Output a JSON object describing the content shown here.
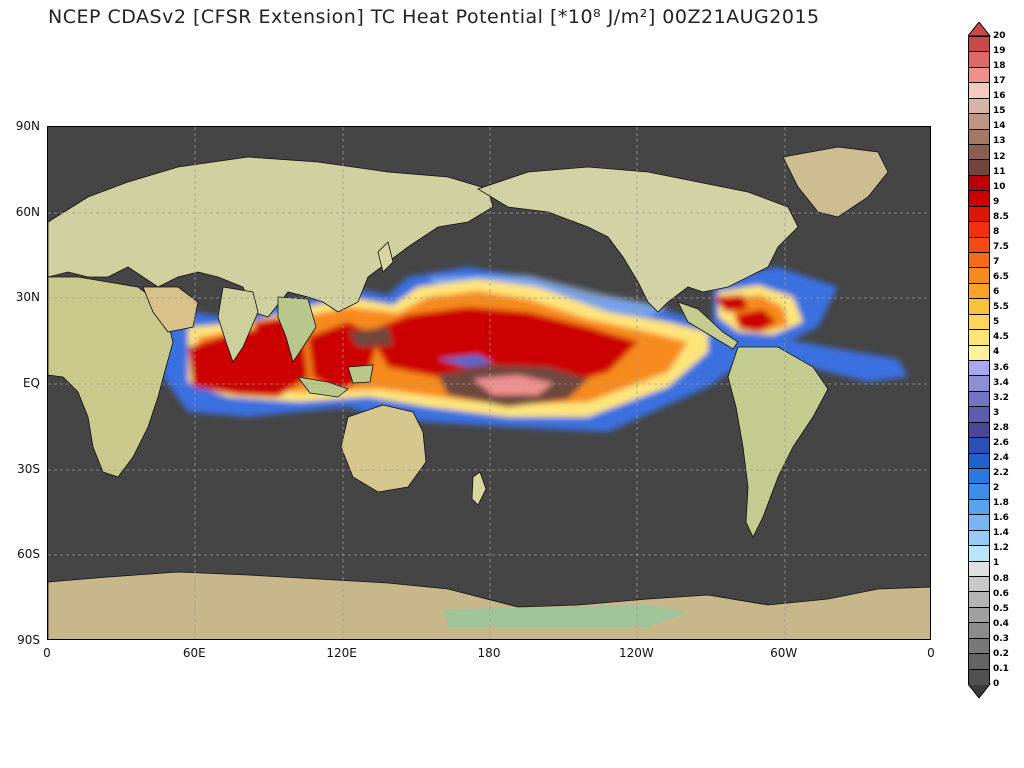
{
  "title": "NCEP CDASv2 [CFSR Extension] TC Heat Potential [*10⁸ J/m²] 00Z21AUG2015",
  "map": {
    "y_axis_labels": [
      "90N",
      "60N",
      "30N",
      "EQ",
      "30S",
      "60S",
      "90S"
    ],
    "x_axis_labels": [
      "0",
      "60E",
      "120E",
      "180",
      "120W",
      "60W",
      "0"
    ],
    "grid": true,
    "ocean_no_data_color": "#454545",
    "land_color": "#d9d4a0",
    "antarctica_color": "#c9b78c"
  },
  "colorbar": {
    "labels": [
      "20",
      "19",
      "18",
      "17",
      "16",
      "15",
      "14",
      "13",
      "12",
      "11",
      "10",
      "9",
      "8.5",
      "8",
      "7.5",
      "7",
      "6.5",
      "6",
      "5.5",
      "5",
      "4.5",
      "4",
      "3.6",
      "3.4",
      "3.2",
      "3",
      "2.8",
      "2.6",
      "2.4",
      "2.2",
      "2",
      "1.8",
      "1.6",
      "1.4",
      "1.2",
      "1",
      "0.8",
      "0.6",
      "0.5",
      "0.4",
      "0.3",
      "0.2",
      "0.1",
      "0"
    ],
    "colors": [
      "#c94848",
      "#dc6a6a",
      "#f0908e",
      "#f6c9c0",
      "#d6b4a6",
      "#bf9684",
      "#a57866",
      "#8a5e50",
      "#6e463c",
      "#b8000a",
      "#cc0000",
      "#e01500",
      "#f03010",
      "#f54a18",
      "#f56a18",
      "#f78a1c",
      "#faa425",
      "#fbc33a",
      "#fdd65a",
      "#fee57a",
      "#fff09e",
      "#a8a8ea",
      "#8f8fd8",
      "#7474c4",
      "#5c5cae",
      "#484898",
      "#2c4fb4",
      "#2060cf",
      "#2a78e0",
      "#3e8ee8",
      "#5aa2ee",
      "#78b6f2",
      "#98caf6",
      "#b8e6fa",
      "#e0e0e0",
      "#c8c8c8",
      "#b4b4b4",
      "#a0a0a0",
      "#8c8c8c",
      "#787878",
      "#646464",
      "#505050"
    ]
  }
}
